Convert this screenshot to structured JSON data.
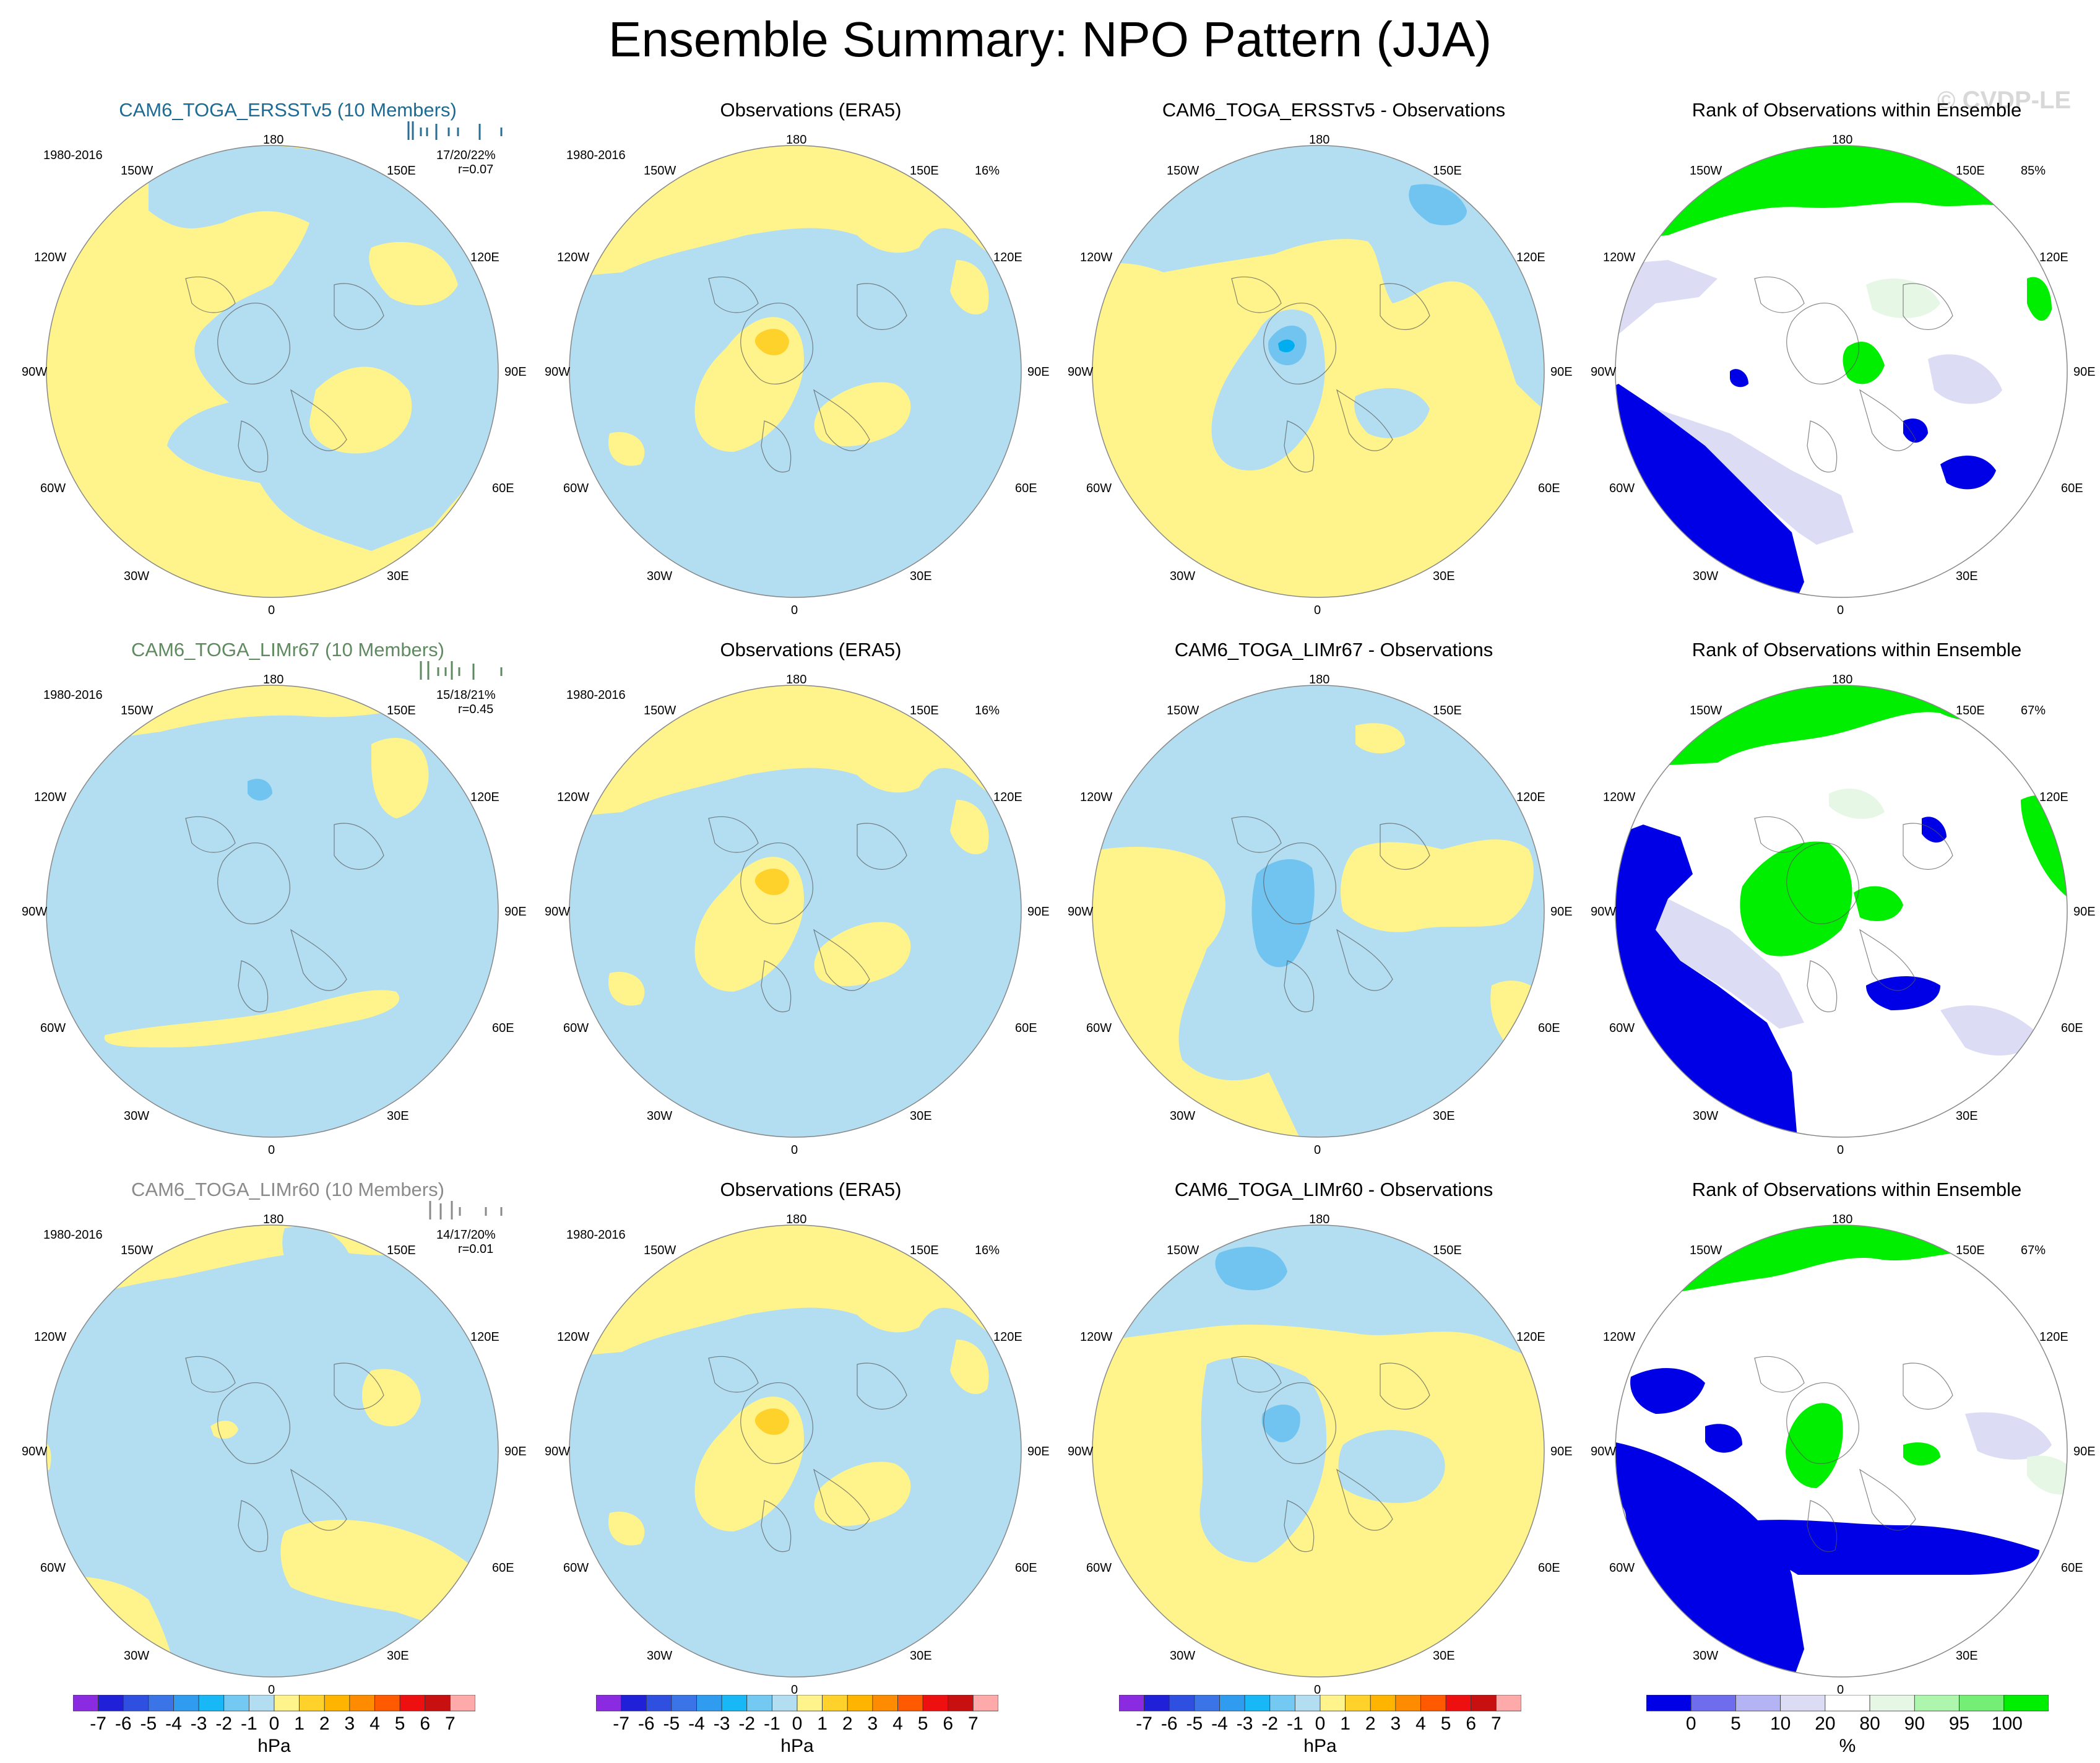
{
  "title": "Ensemble Summary: NPO Pattern (JJA)",
  "watermark": "© CVDP-LE",
  "colors": {
    "neg1": "#b3def2",
    "pos1": "#fff38c",
    "neg2": "#71c3f0",
    "pos2": "#ffd22b",
    "neg3": "#00aeef",
    "rank_low": "#0000e6",
    "rank_lowmid": "#dcdcf5",
    "rank_high": "#00ee00",
    "rank_highmid": "#e6f7e6"
  },
  "map_labels": {
    "lon_180": "180",
    "lon_150w": "150W",
    "lon_150e": "150E",
    "lon_120w": "120W",
    "lon_120e": "120E",
    "lon_90w": "90W",
    "lon_90e": "90E",
    "lon_60w": "60W",
    "lon_60e": "60E",
    "lon_30w": "30W",
    "lon_30e": "30E",
    "lon_0": "0"
  },
  "rows": [
    {
      "model": {
        "title": "CAM6_TOGA_ERSSTv5 (10 Members)",
        "period": "1980-2016",
        "stat1": "17/20/22%",
        "stat2": "r=0.07"
      },
      "obs": {
        "title": "Observations (ERA5)",
        "period": "1980-2016",
        "pct": "16%"
      },
      "diff": {
        "title": "CAM6_TOGA_ERSSTv5 - Observations"
      },
      "rank": {
        "title": "Rank of Observations within Ensemble",
        "pct": "85%"
      }
    },
    {
      "model": {
        "title": "CAM6_TOGA_LIMr67 (10 Members)",
        "period": "1980-2016",
        "stat1": "15/18/21%",
        "stat2": "r=0.45"
      },
      "obs": {
        "title": "Observations (ERA5)",
        "period": "1980-2016",
        "pct": "16%"
      },
      "diff": {
        "title": "CAM6_TOGA_LIMr67 - Observations"
      },
      "rank": {
        "title": "Rank of Observations within Ensemble",
        "pct": "67%"
      }
    },
    {
      "model": {
        "title": "CAM6_TOGA_LIMr60 (10 Members)",
        "period": "1980-2016",
        "stat1": "14/17/20%",
        "stat2": "r=0.01"
      },
      "obs": {
        "title": "Observations (ERA5)",
        "period": "1980-2016",
        "pct": "16%"
      },
      "diff": {
        "title": "CAM6_TOGA_LIMr60 - Observations"
      },
      "rank": {
        "title": "Rank of Observations within Ensemble",
        "pct": "67%"
      }
    }
  ],
  "colorbar_hpa": {
    "unit": "hPa",
    "labels": [
      "-7",
      "-6",
      "-5",
      "-4",
      "-3",
      "-2",
      "-1",
      "0",
      "1",
      "2",
      "3",
      "4",
      "5",
      "6",
      "7"
    ],
    "colors": [
      "#8a2be2",
      "#2020d8",
      "#2f4fe0",
      "#3a74e6",
      "#2f9cf0",
      "#18b8f6",
      "#73c9f2",
      "#b3def2",
      "#fff38c",
      "#ffd22b",
      "#ffb400",
      "#ff8c00",
      "#ff5a00",
      "#ee1010",
      "#c81010",
      "#ffaaaa"
    ]
  },
  "colorbar_rank": {
    "unit": "%",
    "labels": [
      "0",
      "5",
      "10",
      "20",
      "80",
      "90",
      "95",
      "100"
    ],
    "colors": [
      "#0000e6",
      "#6d6dee",
      "#b4b4f5",
      "#dcdcf5",
      "#ffffff",
      "#e6f7e6",
      "#aef5ae",
      "#75ee75",
      "#00ee00"
    ]
  }
}
